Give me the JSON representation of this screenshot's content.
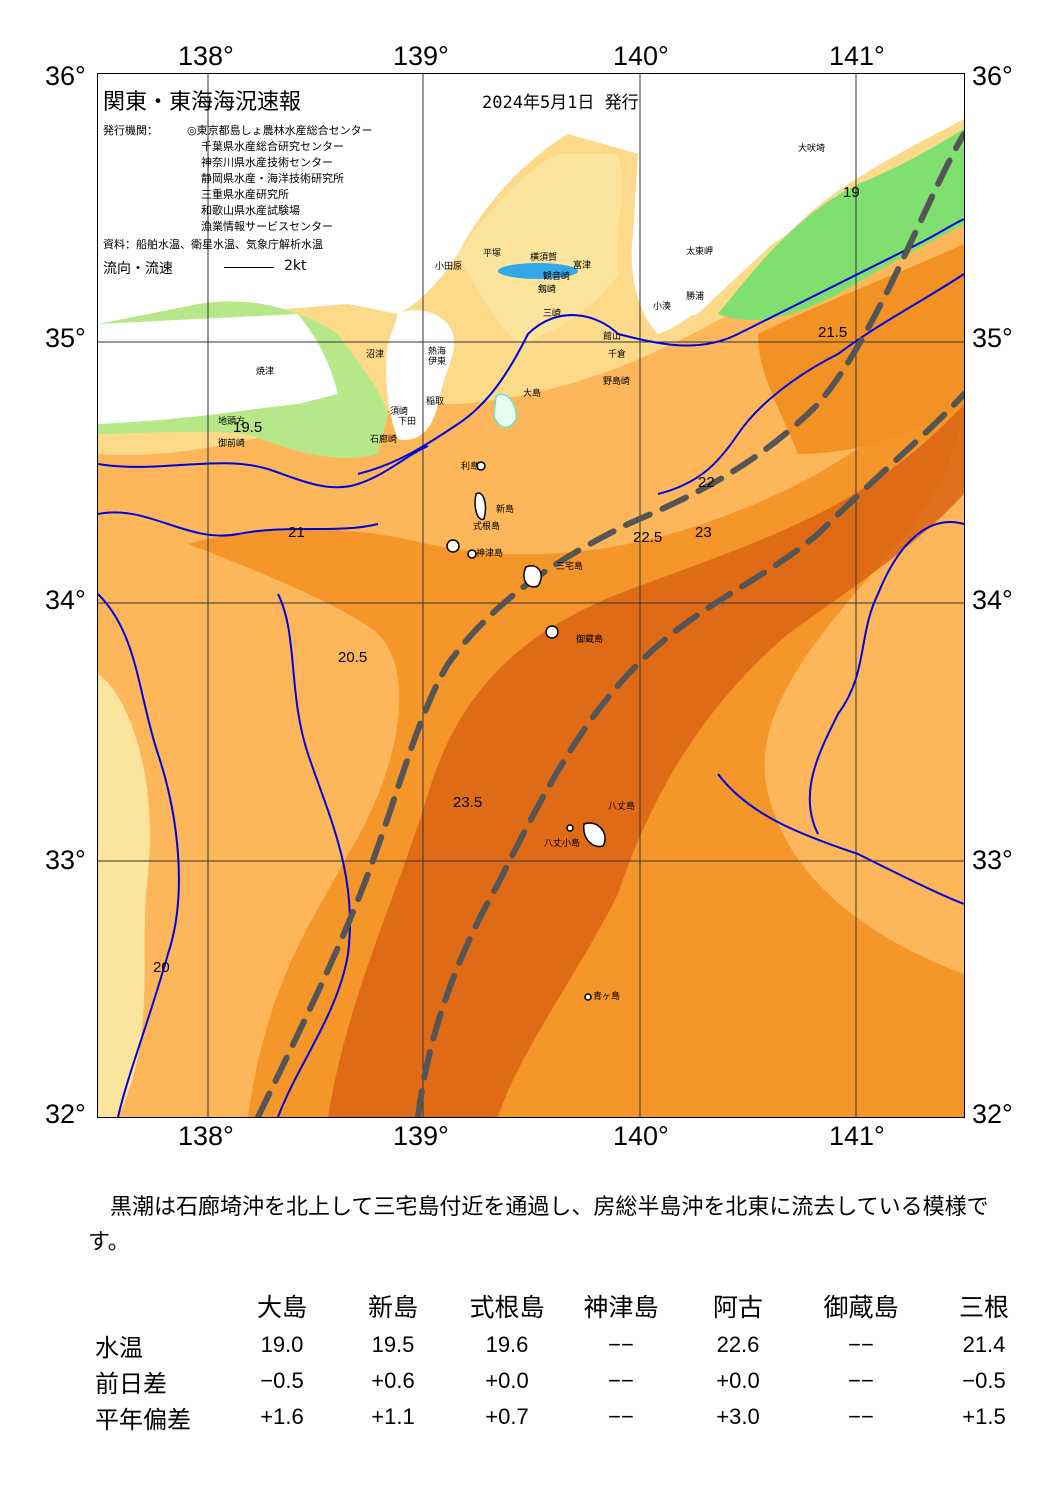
{
  "map": {
    "title": "関東・東海海況速報",
    "issue_date": "2024年5月1日 発行",
    "publisher_heading": "発行機関：",
    "publishers": [
      "◎東京都島しょ農林水産総合センター",
      "千葉県水産総合研究センター",
      "神奈川県水産技術センター",
      "静岡県水産・海洋技術研究所",
      "三重県水産研究所",
      "和歌山県水産試験場",
      "漁業情報サービスセンター"
    ],
    "sources": "資料：船舶水温、衛星水温、気象庁解析水温",
    "flow_legend_label": "流向・流速",
    "flow_legend_value": "2kt",
    "colors": {
      "sea_cool": "#fdd98a",
      "sea_mid": "#fdb75a",
      "sea_warm": "#f39224",
      "sea_hot": "#dc6414",
      "land": "#ffffff",
      "coast_cold": "#7fdf6f",
      "temp_line": "#0000dd",
      "kuroshio": "#555555"
    },
    "longitude_labels": [
      "138°",
      "139°",
      "140°",
      "141°"
    ],
    "latitude_labels": [
      "36°",
      "35°",
      "34°",
      "33°",
      "32°"
    ],
    "place_names": [
      "大吠埼",
      "太東岬",
      "勝浦",
      "小湊",
      "館山",
      "千倉",
      "野島崎",
      "富津",
      "観音崎",
      "剱崎",
      "平塚",
      "横須賀",
      "三崎",
      "小田原",
      "熱海",
      "伊東",
      "大島",
      "利島",
      "新島",
      "式根島",
      "神津島",
      "三宅島",
      "御蔵島",
      "八丈島",
      "八丈小島",
      "青ヶ島",
      "稲取",
      "下田",
      "石廊崎",
      "御前崎",
      "地頭方",
      "沼津",
      "焼津",
      "須崎"
    ],
    "isotherm_labels": [
      "19",
      "19.5",
      "20",
      "20.5",
      "21",
      "21.5",
      "22",
      "22.5",
      "23",
      "23.5"
    ]
  },
  "summary": "黒潮は石廊埼沖を北上して三宅島付近を通過し、房総半島沖を北東に流去している模様です。",
  "table": {
    "headers": [
      "",
      "大島",
      "新島",
      "式根島",
      "神津島",
      "阿古",
      "御蔵島",
      "三根"
    ],
    "rows": [
      {
        "label": "水温",
        "values": [
          "19.0",
          "19.5",
          "19.6",
          "−−",
          "22.6",
          "−−",
          "21.4"
        ]
      },
      {
        "label": "前日差",
        "values": [
          "−0.5",
          "+0.6",
          "+0.0",
          "−−",
          "+0.0",
          "−−",
          "−0.5"
        ]
      },
      {
        "label": "平年偏差",
        "values": [
          "+1.6",
          "+1.1",
          "+0.7",
          "−−",
          "+3.0",
          "−−",
          "+1.5"
        ]
      }
    ]
  }
}
